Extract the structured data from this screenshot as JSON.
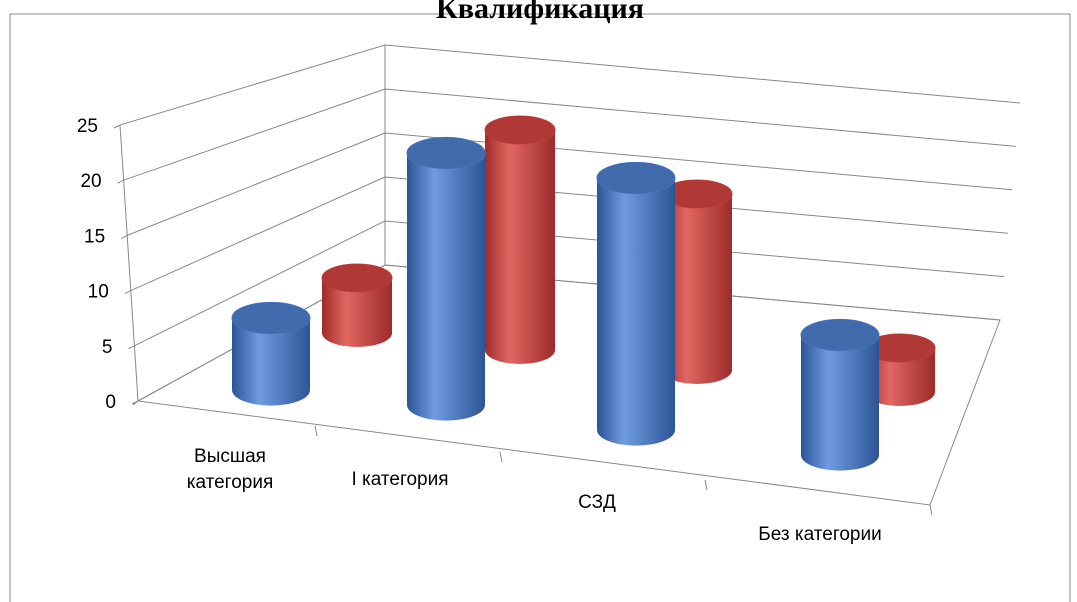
{
  "chart_data": {
    "type": "bar3d",
    "title": "Квалификация",
    "categories": [
      "Высшая категория",
      "I категория",
      "СЗД",
      "Без категории"
    ],
    "series": [
      {
        "color": "#4a7ac4",
        "values": [
          6,
          21,
          21,
          10
        ]
      },
      {
        "color": "#c9413e",
        "values": [
          5,
          20,
          16,
          4
        ]
      }
    ],
    "ylim": [
      0,
      25
    ],
    "yticks": [
      0,
      5,
      10,
      15,
      20,
      25
    ],
    "grid": true
  }
}
